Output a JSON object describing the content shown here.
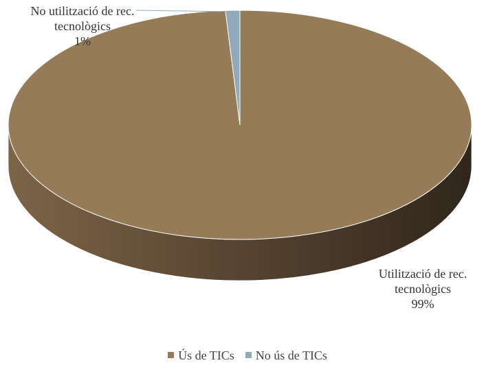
{
  "chart_data": {
    "type": "pie3d",
    "categories": [
      "Ús de TICs",
      "No ús de TICs"
    ],
    "label_names": [
      "Utilització de rec. tecnològics",
      "No utilització de rec. tecnològics"
    ],
    "values": [
      99,
      1
    ],
    "value_labels": [
      "99%",
      "1%"
    ],
    "colors": [
      "#957b58",
      "#8eaabb"
    ],
    "legend": "bottom"
  }
}
